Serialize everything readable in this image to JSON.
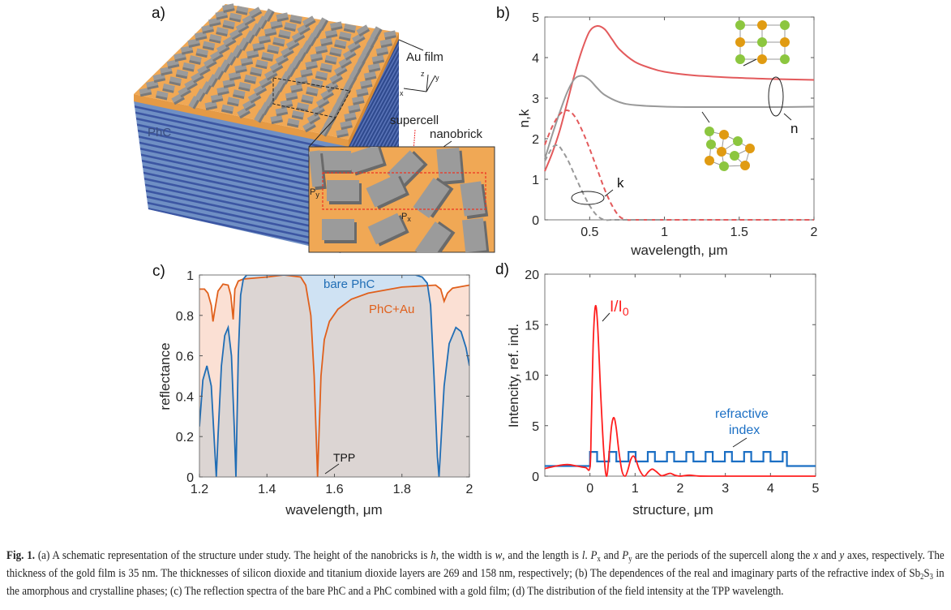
{
  "panel_a": {
    "label": "a)",
    "au_film": "Au film",
    "phc": "PhC",
    "supercell": "supercell",
    "nanobrick": "nanobrick",
    "px": "P",
    "px_sub": "x",
    "py": "P",
    "py_sub": "y",
    "axis_x": "x",
    "axis_y": "y",
    "axis_z": "z",
    "colors": {
      "gold": "#f0a855",
      "phc": "#6f8fc4",
      "stripe": "#3c56a3",
      "brick": "#9b9b9b"
    }
  },
  "chart_data": [
    {
      "id": "b",
      "panel_label": "b)",
      "type": "line",
      "xlabel": "wavelength, μm",
      "ylabel": "n,k",
      "xlim": [
        0.2,
        2
      ],
      "ylim": [
        0,
        5
      ],
      "xticks": [
        0.5,
        1,
        1.5,
        2
      ],
      "xtick_labels": [
        "0.5",
        "1",
        "1.5",
        "2"
      ],
      "yticks": [
        0,
        1,
        2,
        3,
        4,
        5
      ],
      "ytick_labels": [
        "0",
        "1",
        "2",
        "3",
        "4",
        "5"
      ],
      "annotations": {
        "n": "n",
        "k": "k"
      },
      "series": [
        {
          "name": "n crystalline",
          "color": "#e35a5c",
          "dash": false,
          "x": [
            0.2,
            0.25,
            0.3,
            0.35,
            0.4,
            0.45,
            0.5,
            0.55,
            0.6,
            0.65,
            0.7,
            0.8,
            0.9,
            1.0,
            1.2,
            1.5,
            1.75,
            2.0
          ],
          "y": [
            1.2,
            1.65,
            2.2,
            2.9,
            3.6,
            4.2,
            4.65,
            4.78,
            4.7,
            4.45,
            4.2,
            3.9,
            3.75,
            3.65,
            3.56,
            3.5,
            3.47,
            3.45
          ]
        },
        {
          "name": "n amorphous",
          "color": "#999999",
          "dash": false,
          "x": [
            0.2,
            0.25,
            0.3,
            0.35,
            0.4,
            0.45,
            0.5,
            0.55,
            0.6,
            0.7,
            0.8,
            1.0,
            1.2,
            1.5,
            1.75,
            2.0
          ],
          "y": [
            1.5,
            2.1,
            2.65,
            3.15,
            3.48,
            3.55,
            3.45,
            3.25,
            3.08,
            2.9,
            2.83,
            2.79,
            2.78,
            2.78,
            2.78,
            2.79
          ]
        },
        {
          "name": "k crystalline",
          "color": "#e35a5c",
          "dash": true,
          "x": [
            0.2,
            0.25,
            0.3,
            0.35,
            0.4,
            0.45,
            0.5,
            0.55,
            0.6,
            0.65,
            0.7,
            0.75,
            0.8,
            1.0,
            1.5,
            2.0
          ],
          "y": [
            1.85,
            2.3,
            2.6,
            2.7,
            2.55,
            2.2,
            1.75,
            1.25,
            0.75,
            0.35,
            0.08,
            0.0,
            0.0,
            0.0,
            0.0,
            0.0
          ]
        },
        {
          "name": "k amorphous",
          "color": "#999999",
          "dash": true,
          "x": [
            0.2,
            0.25,
            0.28,
            0.3,
            0.35,
            0.4,
            0.45,
            0.5,
            0.55,
            0.6,
            0.65,
            0.7,
            1.0
          ],
          "y": [
            1.45,
            1.78,
            1.84,
            1.8,
            1.5,
            1.1,
            0.7,
            0.35,
            0.1,
            0.0,
            0.0,
            0.0,
            0.0
          ]
        }
      ]
    },
    {
      "id": "c",
      "panel_label": "c)",
      "type": "area",
      "xlabel": "wavelength, μm",
      "ylabel": "reflectance",
      "xlim": [
        1.2,
        2
      ],
      "ylim": [
        0,
        1
      ],
      "xticks": [
        1.2,
        1.4,
        1.6,
        1.8,
        2
      ],
      "xtick_labels": [
        "1.2",
        "1.4",
        "1.6",
        "1.8",
        "2"
      ],
      "yticks": [
        0,
        0.2,
        0.4,
        0.6,
        0.8,
        1
      ],
      "ytick_labels": [
        "0",
        "0.2",
        "0.4",
        "0.6",
        "0.8",
        "1"
      ],
      "annotations": {
        "tpp": "TPP"
      },
      "series": [
        {
          "name": "bare PhC",
          "color": "#1f6db5",
          "fill": "#cfe2f3",
          "x": [
            1.2,
            1.21,
            1.222,
            1.235,
            1.245,
            1.25,
            1.255,
            1.265,
            1.275,
            1.285,
            1.295,
            1.303,
            1.308,
            1.315,
            1.322,
            1.33,
            1.34,
            1.35,
            1.5,
            1.84,
            1.86,
            1.875,
            1.885,
            1.895,
            1.905,
            1.91,
            1.915,
            1.925,
            1.94,
            1.96,
            1.975,
            1.99,
            2.0
          ],
          "y": [
            0.25,
            0.48,
            0.55,
            0.45,
            0.15,
            0.0,
            0.2,
            0.55,
            0.7,
            0.74,
            0.6,
            0.25,
            0.0,
            0.6,
            0.9,
            0.98,
            1.0,
            1.0,
            1.0,
            1.0,
            0.99,
            0.96,
            0.85,
            0.5,
            0.1,
            0.0,
            0.15,
            0.45,
            0.66,
            0.74,
            0.72,
            0.64,
            0.55
          ]
        },
        {
          "name": "PhC+Au",
          "color": "#e0601c",
          "fill": "#fbe0d4",
          "x": [
            1.2,
            1.215,
            1.225,
            1.235,
            1.24,
            1.245,
            1.255,
            1.27,
            1.285,
            1.293,
            1.3,
            1.305,
            1.315,
            1.33,
            1.4,
            1.45,
            1.5,
            1.515,
            1.53,
            1.54,
            1.545,
            1.55,
            1.555,
            1.56,
            1.57,
            1.585,
            1.61,
            1.65,
            1.7,
            1.8,
            1.9,
            1.915,
            1.925,
            1.935,
            1.95,
            2.0
          ],
          "y": [
            0.93,
            0.93,
            0.91,
            0.85,
            0.77,
            0.82,
            0.92,
            0.955,
            0.95,
            0.9,
            0.78,
            0.93,
            0.97,
            0.98,
            0.99,
            1.0,
            0.99,
            0.95,
            0.8,
            0.5,
            0.25,
            0.0,
            0.25,
            0.5,
            0.68,
            0.77,
            0.83,
            0.88,
            0.91,
            0.94,
            0.95,
            0.93,
            0.87,
            0.91,
            0.935,
            0.95
          ]
        }
      ]
    },
    {
      "id": "d",
      "panel_label": "d)",
      "type": "line",
      "xlabel": "structure, μm",
      "ylabel": "Intencity, ref. ind.",
      "xlim": [
        -1,
        5
      ],
      "ylim": [
        0,
        20
      ],
      "xticks": [
        0,
        1,
        2,
        3,
        4,
        5
      ],
      "xtick_labels": [
        "0",
        "1",
        "2",
        "3",
        "4",
        "5"
      ],
      "yticks": [
        0,
        5,
        10,
        15,
        20
      ],
      "ytick_labels": [
        "0",
        "5",
        "10",
        "15",
        "20"
      ],
      "annotations": {
        "intensity": "I/I",
        "intensity_sub": "0",
        "refr_1": "refractive",
        "refr_2": "index"
      },
      "intensity": {
        "name": "I/I0",
        "color": "#ff1e1e",
        "x": [
          -1,
          -0.75,
          -0.5,
          -0.3,
          -0.1,
          0,
          0.03,
          0.07,
          0.12,
          0.17,
          0.24,
          0.31,
          0.37,
          0.43,
          0.48,
          0.53,
          0.58,
          0.64,
          0.71,
          0.78,
          0.84,
          0.9,
          0.96,
          1.02,
          1.1,
          1.2,
          1.3,
          1.38,
          1.47,
          1.58,
          1.68,
          1.78,
          1.88,
          2.0,
          2.2,
          2.4,
          2.7,
          3.0,
          4.0,
          5.0
        ],
        "y": [
          0.75,
          1.0,
          1.15,
          1.0,
          0.85,
          0.9,
          5,
          13,
          16.8,
          15,
          8,
          2.2,
          0.0,
          2.5,
          5.0,
          5.8,
          4.8,
          2.5,
          0.5,
          0.0,
          0.6,
          1.6,
          2.0,
          1.6,
          0.6,
          0.0,
          0.45,
          0.7,
          0.45,
          0.05,
          0.15,
          0.28,
          0.1,
          0.0,
          0.1,
          0.02,
          0.0,
          0.0,
          0.0,
          0.0
        ]
      },
      "refractive_index": {
        "name": "refractive index",
        "color": "#1b6fc4",
        "n_ambient": 1.0,
        "n_high": 2.4,
        "n_low": 1.45,
        "t_high_um": 0.158,
        "t_low_um": 0.269,
        "periods": 10
      }
    }
  ],
  "caption": [
    {
      "t": "Fig. 1.",
      "s": "b"
    },
    {
      "t": " (a) A schematic representation of the structure under study. The height of the nanobricks is "
    },
    {
      "t": "h",
      "s": "i"
    },
    {
      "t": ", the width is "
    },
    {
      "t": "w",
      "s": "i"
    },
    {
      "t": ", and the length is "
    },
    {
      "t": "l",
      "s": "i"
    },
    {
      "t": ". "
    },
    {
      "t": "P",
      "s": "i"
    },
    {
      "t": "x",
      "s": "sub"
    },
    {
      "t": " and "
    },
    {
      "t": "P",
      "s": "i"
    },
    {
      "t": "y",
      "s": "sub"
    },
    {
      "t": " are the periods of the supercell along the "
    },
    {
      "t": "x",
      "s": "i"
    },
    {
      "t": " and "
    },
    {
      "t": "y",
      "s": "i"
    },
    {
      "t": " axes, respectively. The thickness of the gold film is 35 nm. The thicknesses of silicon dioxide and titanium dioxide layers are 269 and 158 nm, respectively; (b) The dependences of the real and imaginary parts of the refractive index of Sb"
    },
    {
      "t": "2",
      "s": "sub"
    },
    {
      "t": "S"
    },
    {
      "t": "3",
      "s": "sub"
    },
    {
      "t": " in the amorphous and crystalline phases; (c) The reflection spectra of the bare PhC and a PhC combined with a gold film; (d) The distribution of the field intensity at the TPP wavelength."
    }
  ]
}
